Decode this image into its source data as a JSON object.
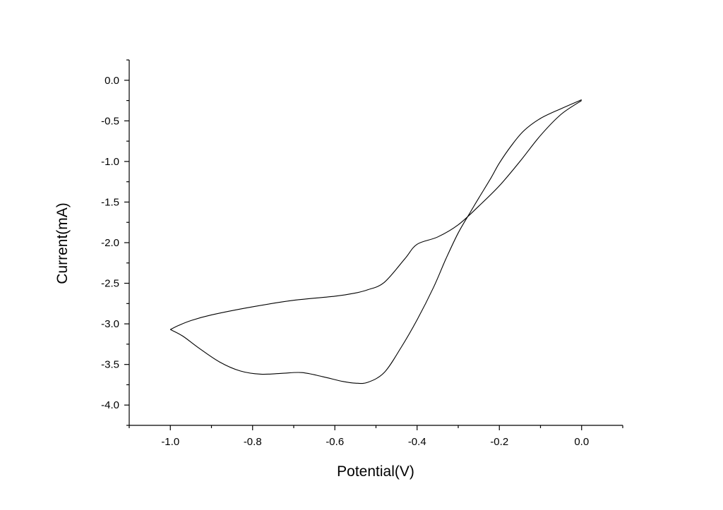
{
  "chart_data": {
    "type": "line",
    "title": "",
    "xlabel": "Potential(V)",
    "ylabel": "Current(mA)",
    "xlim": [
      -1.1,
      0.1
    ],
    "ylim": [
      -4.25,
      0.25
    ],
    "xticks": [
      -1.0,
      -0.8,
      -0.6,
      -0.4,
      -0.2,
      0.0
    ],
    "xtick_labels": [
      "-1.0",
      "-0.8",
      "-0.6",
      "-0.4",
      "-0.2",
      "0.0"
    ],
    "yticks": [
      0.0,
      -0.5,
      -1.0,
      -1.5,
      -2.0,
      -2.5,
      -3.0,
      -3.5,
      -4.0
    ],
    "ytick_labels": [
      "0.0",
      "-0.5",
      "-1.0",
      "-1.5",
      "-2.0",
      "-2.5",
      "-3.0",
      "-3.5",
      "-4.0"
    ],
    "grid": false,
    "legend": "none",
    "line_color": "#000000",
    "series": [
      {
        "x": [
          0.0,
          -0.05,
          -0.1,
          -0.15,
          -0.2,
          -0.25,
          -0.3,
          -0.35,
          -0.4,
          -0.43,
          -0.48,
          -0.52,
          -0.55,
          -0.6,
          -0.7,
          -0.8,
          -0.9,
          -0.95,
          -0.98,
          -1.0
        ],
        "y": [
          -0.25,
          -0.42,
          -0.68,
          -1.0,
          -1.3,
          -1.55,
          -1.78,
          -1.93,
          -2.02,
          -2.2,
          -2.49,
          -2.58,
          -2.62,
          -2.66,
          -2.71,
          -2.79,
          -2.89,
          -2.96,
          -3.02,
          -3.07
        ]
      },
      {
        "x": [
          -1.0,
          -0.97,
          -0.93,
          -0.88,
          -0.83,
          -0.78,
          -0.73,
          -0.68,
          -0.63,
          -0.58,
          -0.55,
          -0.52,
          -0.48,
          -0.44,
          -0.4,
          -0.36,
          -0.33,
          -0.3,
          -0.27,
          -0.25,
          -0.22,
          -0.2,
          -0.17,
          -0.14,
          -0.1,
          -0.05,
          0.0
        ],
        "y": [
          -3.07,
          -3.15,
          -3.3,
          -3.47,
          -3.58,
          -3.62,
          -3.61,
          -3.6,
          -3.65,
          -3.71,
          -3.73,
          -3.72,
          -3.6,
          -3.3,
          -2.95,
          -2.55,
          -2.2,
          -1.88,
          -1.62,
          -1.45,
          -1.2,
          -1.02,
          -0.8,
          -0.62,
          -0.47,
          -0.35,
          -0.24
        ]
      }
    ]
  }
}
